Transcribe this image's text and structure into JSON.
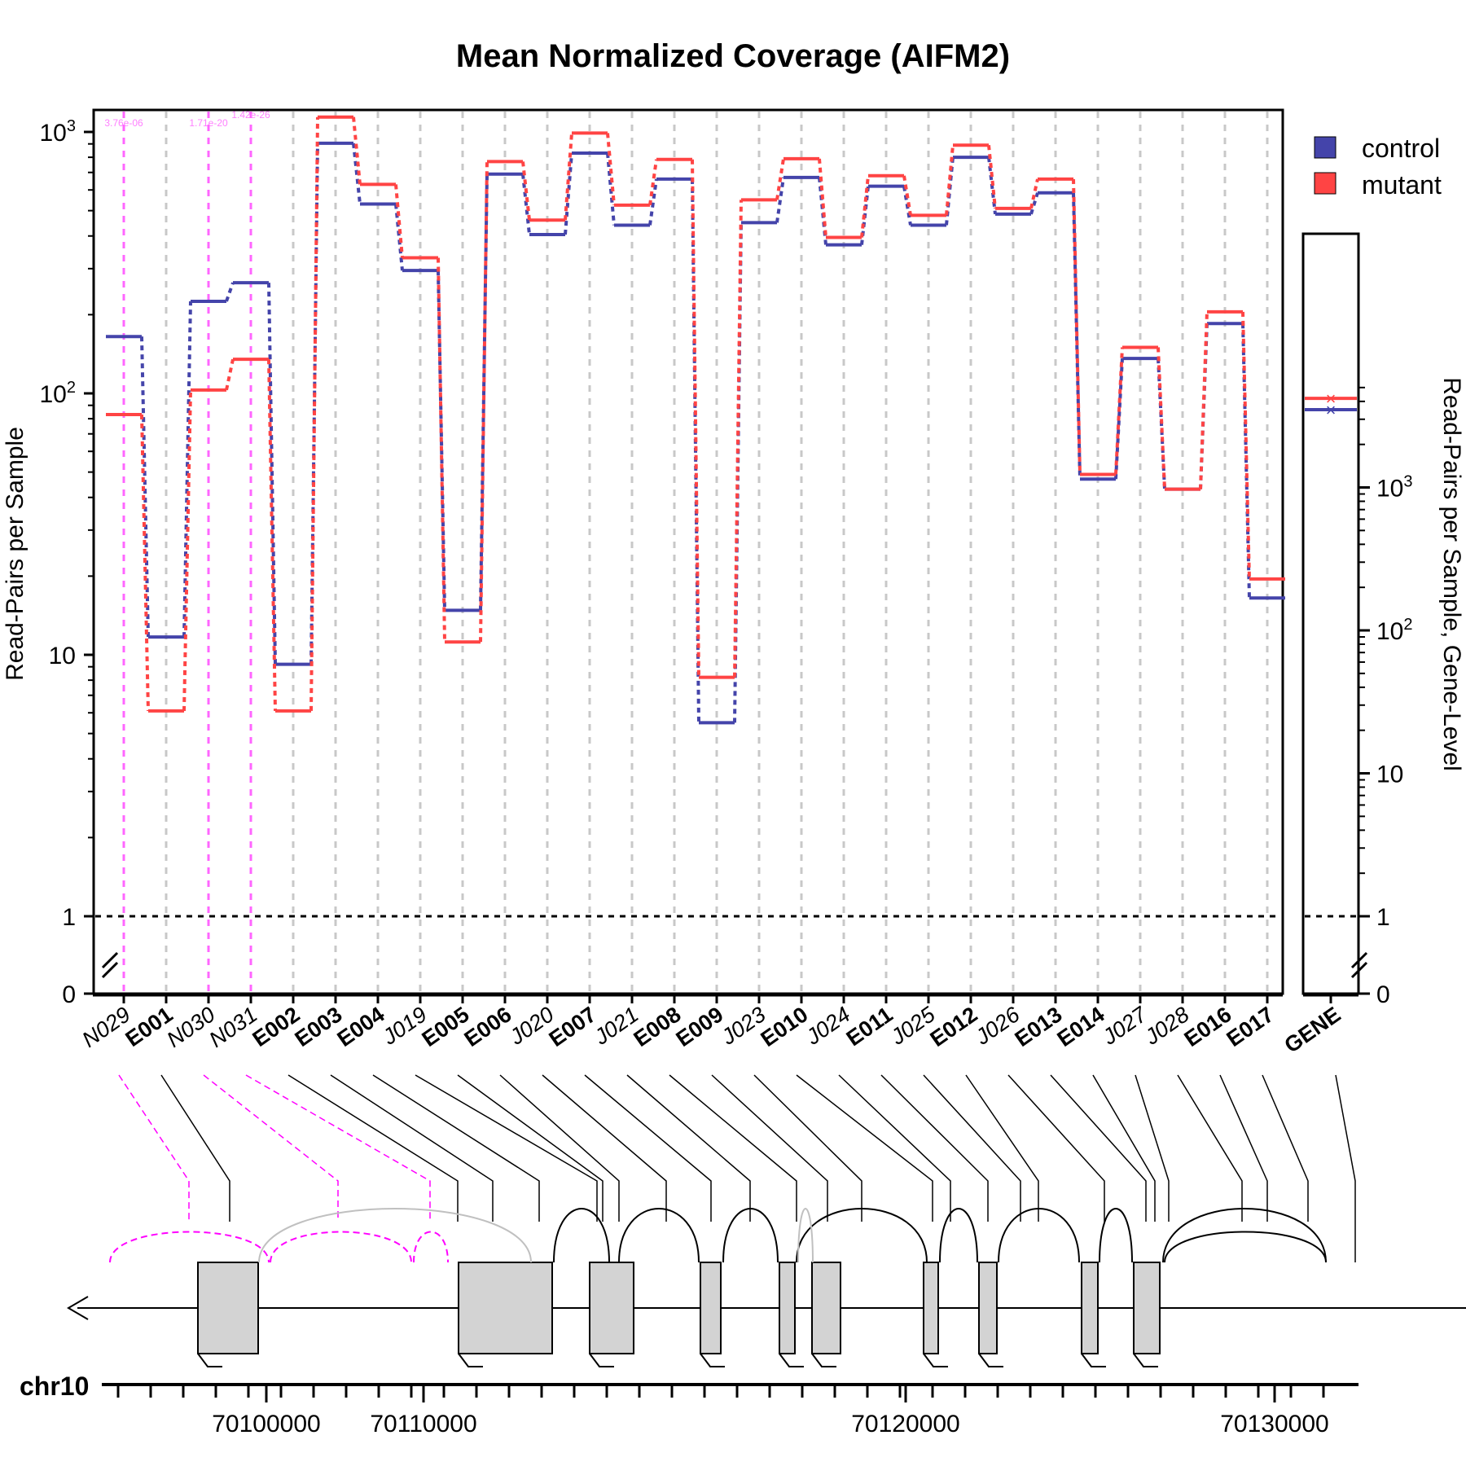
{
  "chart_data": {
    "type": "line",
    "title": "Mean Normalized Coverage (AIFM2)",
    "ylabel": "Read-Pairs per Sample",
    "ylabel_right": "Read-Pairs per Sample, Gene-Level",
    "y_scale": "log",
    "y_ticks_left": [
      "0",
      "1",
      "10",
      "10^2",
      "10^3"
    ],
    "y_ticks_right": [
      "0",
      "1",
      "10",
      "10^2",
      "10^3"
    ],
    "grid": "vertical dashed at each feature",
    "legend_position": "top-right",
    "colors": {
      "control": "#4444aa",
      "mutant": "#ff4444",
      "novel": "#ff66ff",
      "gene_box": "#d3d3d3"
    },
    "features": [
      {
        "name": "N029",
        "kind": "novel",
        "control": 165,
        "mutant": 83,
        "pvalue": "3.76e-06"
      },
      {
        "name": "E001",
        "kind": "exon",
        "control": 11.7,
        "mutant": 6.1
      },
      {
        "name": "N030",
        "kind": "novel",
        "control": 225,
        "mutant": 103,
        "pvalue": "1.71e-20"
      },
      {
        "name": "N031",
        "kind": "novel",
        "control": 265,
        "mutant": 135,
        "pvalue": "1.42e-26"
      },
      {
        "name": "E002",
        "kind": "exon",
        "control": 9.2,
        "mutant": 6.1
      },
      {
        "name": "E003",
        "kind": "exon",
        "control": 905,
        "mutant": 1140
      },
      {
        "name": "E004",
        "kind": "exon",
        "control": 530,
        "mutant": 630
      },
      {
        "name": "J019",
        "kind": "junction",
        "control": 295,
        "mutant": 330
      },
      {
        "name": "E005",
        "kind": "exon",
        "control": 14.8,
        "mutant": 11.2
      },
      {
        "name": "E006",
        "kind": "exon",
        "control": 690,
        "mutant": 770
      },
      {
        "name": "J020",
        "kind": "junction",
        "control": 405,
        "mutant": 460
      },
      {
        "name": "E007",
        "kind": "exon",
        "control": 830,
        "mutant": 990
      },
      {
        "name": "J021",
        "kind": "junction",
        "control": 440,
        "mutant": 525
      },
      {
        "name": "E008",
        "kind": "exon",
        "control": 660,
        "mutant": 785
      },
      {
        "name": "E009",
        "kind": "exon",
        "control": 5.5,
        "mutant": 8.2
      },
      {
        "name": "J023",
        "kind": "junction",
        "control": 450,
        "mutant": 550
      },
      {
        "name": "E010",
        "kind": "exon",
        "control": 670,
        "mutant": 790
      },
      {
        "name": "J024",
        "kind": "junction",
        "control": 370,
        "mutant": 395
      },
      {
        "name": "E011",
        "kind": "exon",
        "control": 620,
        "mutant": 680
      },
      {
        "name": "J025",
        "kind": "junction",
        "control": 440,
        "mutant": 480
      },
      {
        "name": "E012",
        "kind": "exon",
        "control": 800,
        "mutant": 890
      },
      {
        "name": "J026",
        "kind": "junction",
        "control": 485,
        "mutant": 510
      },
      {
        "name": "E013",
        "kind": "exon",
        "control": 585,
        "mutant": 660
      },
      {
        "name": "E014",
        "kind": "exon",
        "control": 47,
        "mutant": 49
      },
      {
        "name": "J027",
        "kind": "junction",
        "control": 136,
        "mutant": 150
      },
      {
        "name": "J028",
        "kind": "junction",
        "control": 43,
        "mutant": 43
      },
      {
        "name": "E016",
        "kind": "exon",
        "control": 185,
        "mutant": 205
      },
      {
        "name": "E017",
        "kind": "exon",
        "control": 16.5,
        "mutant": 19.5
      }
    ],
    "gene_level": {
      "name": "GENE",
      "control": 3500,
      "mutant": 4200
    },
    "legend": [
      "control",
      "mutant"
    ],
    "genome": {
      "chrom": "chr10",
      "tick_labels": [
        "70100000",
        "70110000",
        "70120000",
        "70130000"
      ]
    }
  }
}
